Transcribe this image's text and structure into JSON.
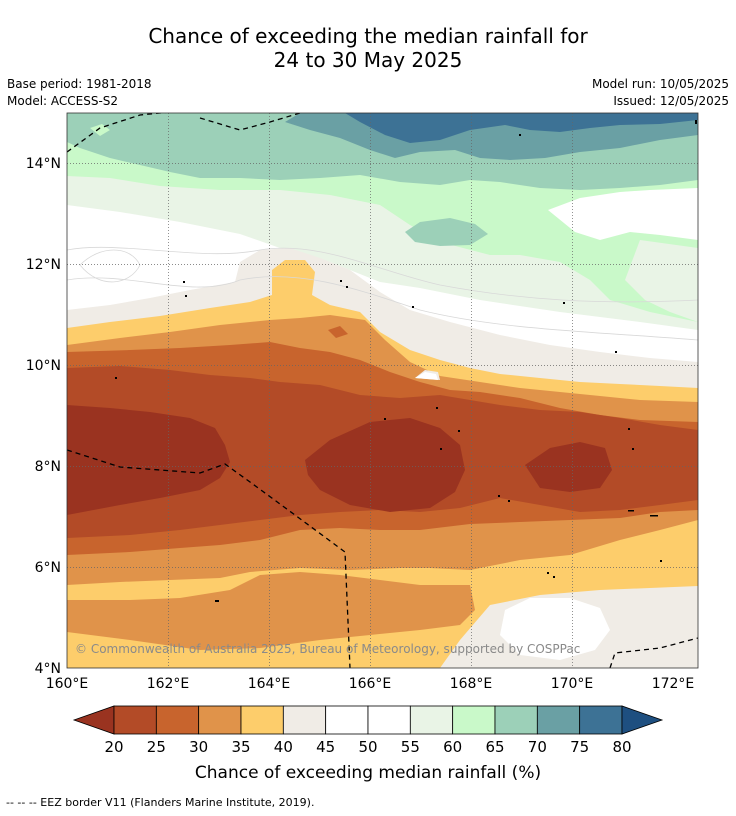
{
  "title": {
    "line1": "Chance of exceeding the median rainfall for",
    "line2": "24 to 30 May 2025"
  },
  "meta": {
    "base_period": "Base period: 1981-2018",
    "model": "Model: ACCESS-S2",
    "model_run": "Model run: 10/05/2025",
    "issued": "Issued: 12/05/2025"
  },
  "map": {
    "x_ticks": [
      "160°E",
      "162°E",
      "164°E",
      "166°E",
      "168°E",
      "170°E",
      "172°E"
    ],
    "y_ticks": [
      "14°N",
      "12°N",
      "10°N",
      "8°N",
      "6°N",
      "4°N"
    ],
    "copyright": "© Commonwealth of Australia 2025, Bureau of Meteorology, supported by COSPPac",
    "band_colors": [
      "#9a3320",
      "#b34b27",
      "#c8642d",
      "#e0934a",
      "#fdcd6b",
      "#f0ece6",
      "#ffffff",
      "#e9f4e6",
      "#c9f9c9",
      "#9cd0b8",
      "#6aa0a4",
      "#3d7295",
      "#1e4f80"
    ]
  },
  "colorbar": {
    "labels": [
      "20",
      "25",
      "30",
      "35",
      "40",
      "45",
      "50",
      "55",
      "60",
      "65",
      "70",
      "75",
      "80"
    ],
    "colors": [
      "#9a3320",
      "#b34b27",
      "#c8642d",
      "#e0934a",
      "#fdcd6b",
      "#f0ece6",
      "#ffffff",
      "#ffffff",
      "#e9f4e6",
      "#c9f9c9",
      "#9cd0b8",
      "#6aa0a4",
      "#3d7295",
      "#1e4f80"
    ],
    "title": "Chance of exceeding median rainfall (%)"
  },
  "footer": "--  --  -- EEZ border V11 (Flanders Marine Institute, 2019)."
}
